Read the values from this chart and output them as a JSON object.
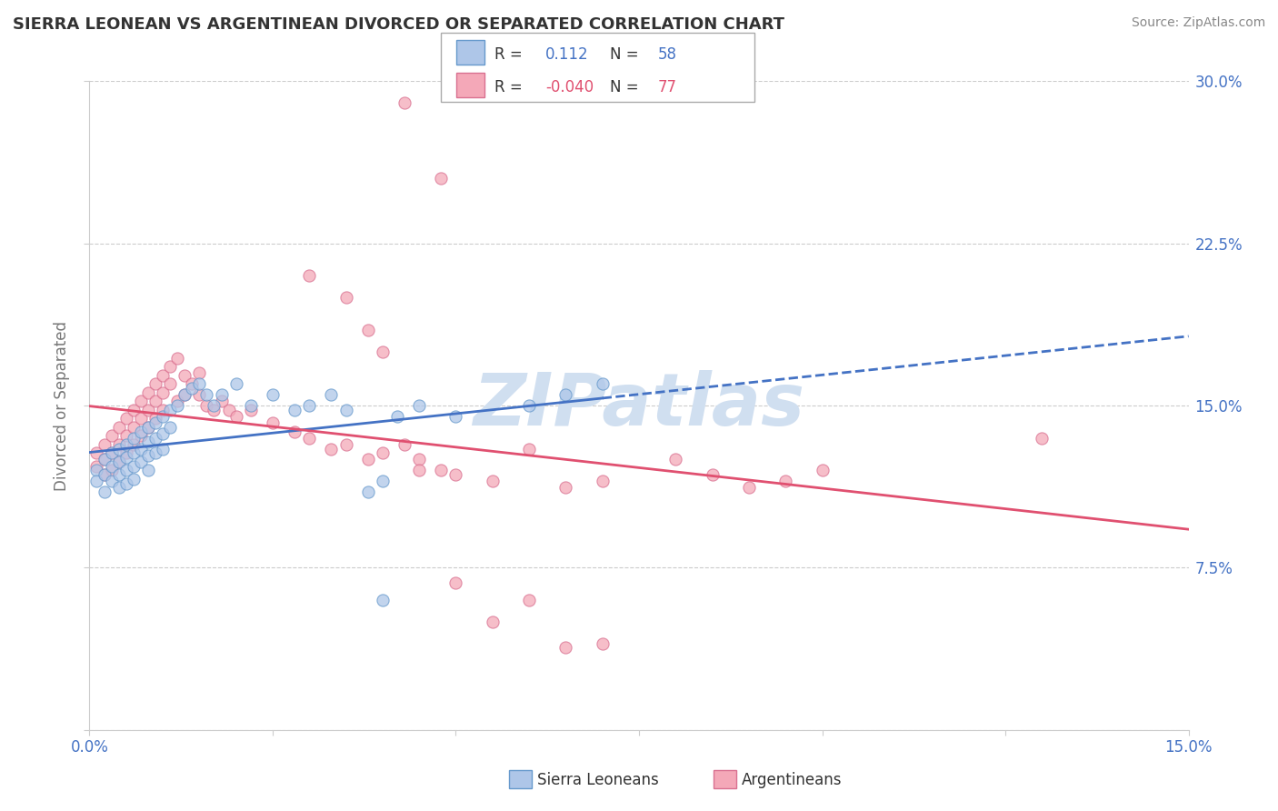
{
  "title": "SIERRA LEONEAN VS ARGENTINEAN DIVORCED OR SEPARATED CORRELATION CHART",
  "source": "Source: ZipAtlas.com",
  "ylabel": "Divorced or Separated",
  "xlim": [
    0.0,
    0.15
  ],
  "ylim": [
    0.0,
    0.3
  ],
  "xticks": [
    0.0,
    0.025,
    0.05,
    0.075,
    0.1,
    0.125,
    0.15
  ],
  "xticklabels": [
    "0.0%",
    "",
    "",
    "",
    "",
    "",
    "15.0%"
  ],
  "yticks": [
    0.0,
    0.075,
    0.15,
    0.225,
    0.3
  ],
  "yticklabels": [
    "",
    "7.5%",
    "15.0%",
    "22.5%",
    "30.0%"
  ],
  "grid_color": "#cccccc",
  "background_color": "#ffffff",
  "title_color": "#333333",
  "axis_label_color": "#777777",
  "tick_color": "#4472c4",
  "legend_R1": "0.112",
  "legend_N1": "58",
  "legend_R2": "-0.040",
  "legend_N2": "77",
  "sierra_color": "#aec6e8",
  "sierra_edge": "#6699cc",
  "arg_color": "#f4a8b8",
  "arg_edge": "#d97090",
  "trend_blue": "#4472c4",
  "trend_pink": "#e05070",
  "watermark_color": "#d0dff0",
  "sierra_x": [
    0.001,
    0.001,
    0.002,
    0.002,
    0.002,
    0.003,
    0.003,
    0.003,
    0.004,
    0.004,
    0.004,
    0.004,
    0.005,
    0.005,
    0.005,
    0.005,
    0.006,
    0.006,
    0.006,
    0.006,
    0.007,
    0.007,
    0.007,
    0.008,
    0.008,
    0.008,
    0.008,
    0.009,
    0.009,
    0.009,
    0.01,
    0.01,
    0.01,
    0.011,
    0.011,
    0.012,
    0.013,
    0.014,
    0.015,
    0.016,
    0.017,
    0.018,
    0.02,
    0.022,
    0.025,
    0.028,
    0.03,
    0.033,
    0.035,
    0.038,
    0.04,
    0.042,
    0.045,
    0.05,
    0.06,
    0.065,
    0.07,
    0.04
  ],
  "sierra_y": [
    0.12,
    0.115,
    0.125,
    0.118,
    0.11,
    0.128,
    0.122,
    0.115,
    0.13,
    0.124,
    0.118,
    0.112,
    0.132,
    0.126,
    0.12,
    0.114,
    0.135,
    0.128,
    0.122,
    0.116,
    0.138,
    0.13,
    0.124,
    0.14,
    0.133,
    0.127,
    0.12,
    0.142,
    0.135,
    0.128,
    0.145,
    0.137,
    0.13,
    0.148,
    0.14,
    0.15,
    0.155,
    0.158,
    0.16,
    0.155,
    0.15,
    0.155,
    0.16,
    0.15,
    0.155,
    0.148,
    0.15,
    0.155,
    0.148,
    0.11,
    0.115,
    0.145,
    0.15,
    0.145,
    0.15,
    0.155,
    0.16,
    0.06
  ],
  "arg_x": [
    0.001,
    0.001,
    0.002,
    0.002,
    0.002,
    0.003,
    0.003,
    0.003,
    0.004,
    0.004,
    0.004,
    0.005,
    0.005,
    0.005,
    0.006,
    0.006,
    0.006,
    0.007,
    0.007,
    0.007,
    0.008,
    0.008,
    0.008,
    0.009,
    0.009,
    0.009,
    0.01,
    0.01,
    0.01,
    0.011,
    0.011,
    0.012,
    0.012,
    0.013,
    0.013,
    0.014,
    0.015,
    0.015,
    0.016,
    0.017,
    0.018,
    0.019,
    0.02,
    0.022,
    0.025,
    0.028,
    0.03,
    0.033,
    0.035,
    0.038,
    0.04,
    0.043,
    0.045,
    0.048,
    0.05,
    0.055,
    0.06,
    0.065,
    0.07,
    0.08,
    0.085,
    0.09,
    0.095,
    0.1,
    0.13,
    0.043,
    0.048,
    0.03,
    0.035,
    0.038,
    0.04,
    0.045,
    0.05,
    0.055,
    0.06,
    0.065,
    0.07
  ],
  "arg_y": [
    0.128,
    0.122,
    0.132,
    0.125,
    0.118,
    0.136,
    0.128,
    0.12,
    0.14,
    0.132,
    0.124,
    0.144,
    0.136,
    0.128,
    0.148,
    0.14,
    0.132,
    0.152,
    0.144,
    0.136,
    0.156,
    0.148,
    0.14,
    0.16,
    0.152,
    0.144,
    0.164,
    0.156,
    0.148,
    0.168,
    0.16,
    0.152,
    0.172,
    0.164,
    0.155,
    0.16,
    0.165,
    0.155,
    0.15,
    0.148,
    0.152,
    0.148,
    0.145,
    0.148,
    0.142,
    0.138,
    0.135,
    0.13,
    0.132,
    0.125,
    0.128,
    0.132,
    0.125,
    0.12,
    0.118,
    0.115,
    0.13,
    0.112,
    0.115,
    0.125,
    0.118,
    0.112,
    0.115,
    0.12,
    0.135,
    0.29,
    0.255,
    0.21,
    0.2,
    0.185,
    0.175,
    0.12,
    0.068,
    0.05,
    0.06,
    0.038,
    0.04
  ]
}
